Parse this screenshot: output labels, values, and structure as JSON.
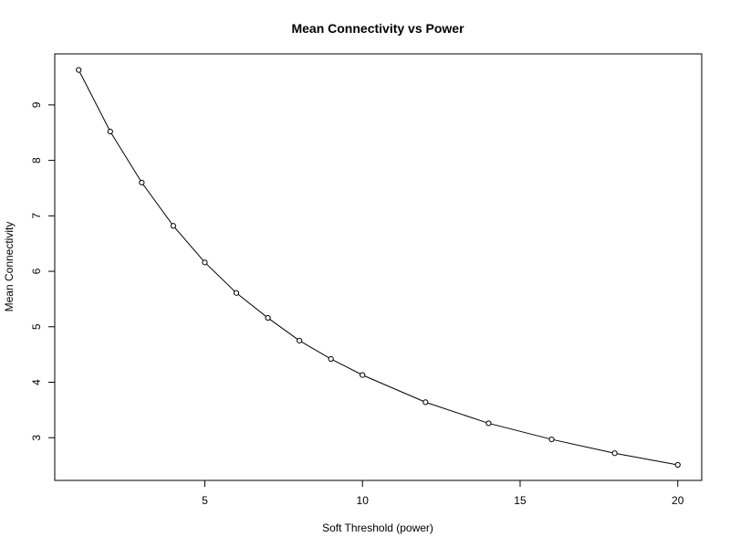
{
  "chart_data": {
    "type": "line",
    "title": "Mean Connectivity vs Power",
    "xlabel": "Soft Threshold (power)",
    "ylabel": "Mean Connectivity",
    "xlim": [
      0.24,
      20.76
    ],
    "ylim": [
      2.23,
      9.92
    ],
    "xticks": [
      5,
      10,
      15,
      20
    ],
    "yticks": [
      3,
      4,
      5,
      6,
      7,
      8,
      9
    ],
    "grid": false,
    "legend": "none",
    "markers": "open-circle",
    "line_color": "#000000",
    "x": [
      1,
      2,
      3,
      4,
      5,
      6,
      7,
      8,
      9,
      10,
      12,
      14,
      16,
      18,
      20
    ],
    "y": [
      9.63,
      8.52,
      7.6,
      6.82,
      6.16,
      5.61,
      5.16,
      4.75,
      4.42,
      4.13,
      3.64,
      3.26,
      2.97,
      2.72,
      2.51
    ]
  }
}
